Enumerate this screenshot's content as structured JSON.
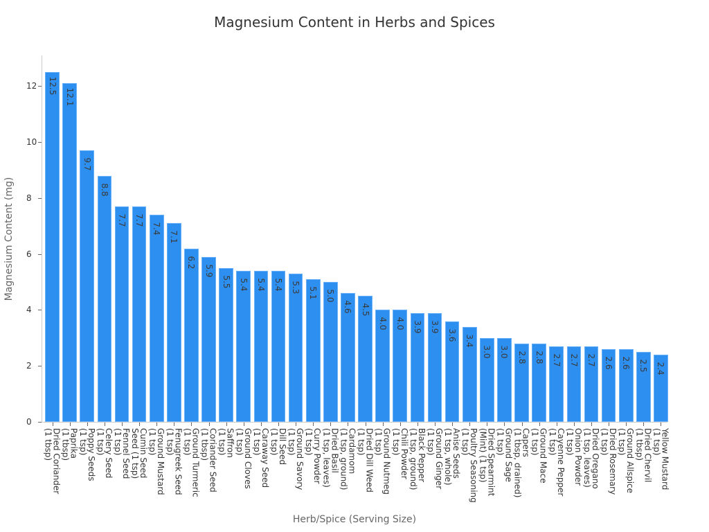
{
  "chart_data": {
    "type": "bar",
    "title": "Magnesium Content in Herbs and Spices",
    "xlabel": "Herb/Spice (Serving Size)",
    "ylabel": "Magnesium Content (mg)",
    "ylim": [
      0,
      13.1
    ],
    "yticks": [
      0,
      2,
      4,
      6,
      8,
      10,
      12
    ],
    "grid": false,
    "bar_color": "#2d8ff0",
    "categories": [
      "Dried Coriander\n(1 tbsp)",
      "Paprika\n(1 tbsp)",
      "Poppy Seeds\n(1 tsp)",
      "Celery Seed\n(1 tsp)",
      "Fennel Seed\n(1 tsp)",
      "Cumin Seed\nSeed (1 tsp)",
      "Ground Mustard\n(1 tsp)",
      "Fenugreek Seed\n(1 tsp)",
      "Ground Turmeric\n(1 tsp)",
      "Coriander Seed\n(1 tbsp)",
      "Saffron\n(1 tsp)",
      "Ground Cloves\n(1 tsp)",
      "Caraway Seed\n(1 tsp)",
      "Dill Seed\n(1 tsp)",
      "Ground Savory\n(1 tsp)",
      "Curry Powder\n(1 tsp)",
      "Dried Basil\n(1 tsp, leaves)",
      "Cardamom\n(1 tsp, ground)",
      "Dried Dill Weed\n(1 tsp)",
      "Ground Nutmeg\n(1 tsp)",
      "Chili Powder\n(1 tsp)",
      "Black Pepper\n(1 tsp, ground)",
      "Ground Ginger\n(1 tsp)",
      "Anise Seeds\n(1 tsp, whole)",
      "Poultry Seasoning\n(1 tsp)",
      "Dried Spearmint\n(Mint) (1 tsp)",
      "Ground Sage\n(1 tsp)",
      "Capers\n(1 tbsp, drained)",
      "Ground Mace\n(1 tsp)",
      "Cayenne Pepper\n(1 tsp)",
      "Onion Powder\n(1 tsp)",
      "Dried Oregano\n(1 tsp, leaves)",
      "Dried Rosemary\n(1 tsp)",
      "Ground Allspice\n(1 tsp)",
      "Dried Chervil\n(1 tbsp)",
      "Yellow Mustard\n(1 tsp)"
    ],
    "values": [
      12.5,
      12.1,
      9.7,
      8.8,
      7.7,
      7.7,
      7.4,
      7.1,
      6.2,
      5.9,
      5.5,
      5.4,
      5.4,
      5.4,
      5.3,
      5.1,
      5.0,
      4.6,
      4.5,
      4.0,
      4.0,
      3.9,
      3.9,
      3.6,
      3.4,
      3.0,
      3.0,
      2.8,
      2.8,
      2.7,
      2.7,
      2.7,
      2.6,
      2.6,
      2.5,
      2.4
    ],
    "value_labels": [
      "12.5",
      "12.1",
      "9.7",
      "8.8",
      "7.7",
      "7.7",
      "7.4",
      "7.1",
      "6.2",
      "5.9",
      "5.5",
      "5.4",
      "5.4",
      "5.4",
      "5.3",
      "5.1",
      "5.0",
      "4.6",
      "4.5",
      "4.0",
      "4.0",
      "3.9",
      "3.9",
      "3.6",
      "3.4",
      "3.0",
      "3.0",
      "2.8",
      "2.8",
      "2.7",
      "2.7",
      "2.7",
      "2.6",
      "2.6",
      "2.5",
      "2.4"
    ]
  }
}
